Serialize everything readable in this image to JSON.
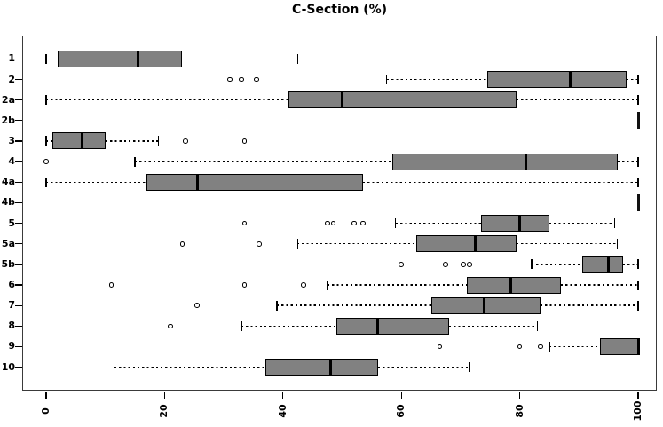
{
  "chart_data": {
    "type": "boxplot",
    "orientation": "horizontal",
    "title": "C-Section (%)",
    "xlabel": "",
    "ylabel": "",
    "x_axis": {
      "ticks": [
        0,
        20,
        40,
        60,
        80,
        100
      ],
      "range": [
        0,
        100
      ],
      "tick_label_rotation_deg": -90
    },
    "categories": [
      "1",
      "2",
      "2a",
      "2b",
      "3",
      "4",
      "4a",
      "4b",
      "5",
      "5a",
      "5b",
      "6",
      "7",
      "8",
      "9",
      "10"
    ],
    "boxes": [
      {
        "category": "1",
        "whisker_low": 0,
        "q1": 2,
        "median": 15.5,
        "q3": 23,
        "whisker_high": 42.5,
        "outliers": []
      },
      {
        "category": "2",
        "whisker_low": 57.5,
        "q1": 74.5,
        "median": 88.5,
        "q3": 98,
        "whisker_high": 100,
        "outliers": [
          31,
          33,
          35.5
        ]
      },
      {
        "category": "2a",
        "whisker_low": 0,
        "q1": 41,
        "median": 50,
        "q3": 79.5,
        "whisker_high": 100,
        "outliers": []
      },
      {
        "category": "2b",
        "whisker_low": 100,
        "q1": 100,
        "median": 100,
        "q3": 100,
        "whisker_high": 100,
        "outliers": []
      },
      {
        "category": "3",
        "whisker_low": 0,
        "q1": 1,
        "median": 6,
        "q3": 10,
        "whisker_high": 19,
        "outliers": [
          23.5,
          33.5
        ]
      },
      {
        "category": "4",
        "whisker_low": 15,
        "q1": 58.5,
        "median": 81,
        "q3": 96.5,
        "whisker_high": 100,
        "outliers": [
          0
        ]
      },
      {
        "category": "4a",
        "whisker_low": 0,
        "q1": 17,
        "median": 25.5,
        "q3": 53.5,
        "whisker_high": 100,
        "outliers": []
      },
      {
        "category": "4b",
        "whisker_low": 100,
        "q1": 100,
        "median": 100,
        "q3": 100,
        "whisker_high": 100,
        "outliers": []
      },
      {
        "category": "5",
        "whisker_low": 59,
        "q1": 73.5,
        "median": 80,
        "q3": 85,
        "whisker_high": 96,
        "outliers": [
          33.5,
          47.5,
          48.5,
          52,
          53.5
        ]
      },
      {
        "category": "5a",
        "whisker_low": 42.5,
        "q1": 62.5,
        "median": 72.5,
        "q3": 79.5,
        "whisker_high": 96.5,
        "outliers": [
          23,
          36
        ]
      },
      {
        "category": "5b",
        "whisker_low": 82,
        "q1": 90.5,
        "median": 95,
        "q3": 97.5,
        "whisker_high": 100,
        "outliers": [
          60,
          67.5,
          70.5,
          71.5
        ]
      },
      {
        "category": "6",
        "whisker_low": 47.5,
        "q1": 71,
        "median": 78.5,
        "q3": 87,
        "whisker_high": 100,
        "outliers": [
          11,
          33.5,
          43.5
        ]
      },
      {
        "category": "7",
        "whisker_low": 39,
        "q1": 65,
        "median": 74,
        "q3": 83.5,
        "whisker_high": 100,
        "outliers": [
          25.5
        ]
      },
      {
        "category": "8",
        "whisker_low": 33,
        "q1": 49,
        "median": 56,
        "q3": 68,
        "whisker_high": 83,
        "outliers": [
          21
        ]
      },
      {
        "category": "9",
        "whisker_low": 85,
        "q1": 93.5,
        "median": 100,
        "q3": 100,
        "whisker_high": 100,
        "outliers": [
          66.5,
          80,
          83.5
        ]
      },
      {
        "category": "10",
        "whisker_low": 11.5,
        "q1": 37,
        "median": 48,
        "q3": 56,
        "whisker_high": 71.5,
        "outliers": []
      }
    ],
    "style": {
      "box_fill": "#818181",
      "box_border": "#000000",
      "median_color": "#000000",
      "whisker_style": "dashed",
      "outlier_marker": "open-circle",
      "background": "#ffffff",
      "plot_border_color": "#3a3a3a",
      "grid": "off",
      "legend": "none"
    }
  }
}
